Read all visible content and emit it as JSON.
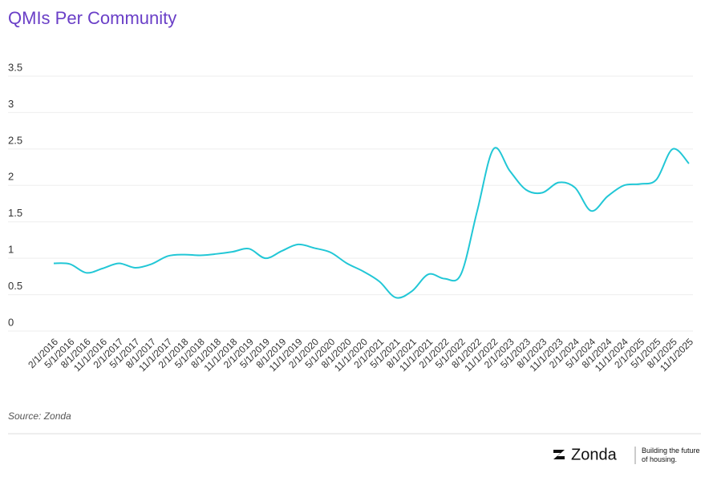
{
  "chart_data": {
    "type": "line",
    "title": "QMIs Per Community",
    "categories": [
      "2/1/2016",
      "5/1/2016",
      "8/1/2016",
      "11/1/2016",
      "2/1/2017",
      "5/1/2017",
      "8/1/2017",
      "11/1/2017",
      "2/1/2018",
      "5/1/2018",
      "8/1/2018",
      "11/1/2018",
      "2/1/2019",
      "5/1/2019",
      "8/1/2019",
      "11/1/2019",
      "2/1/2020",
      "5/1/2020",
      "8/1/2020",
      "11/1/2020",
      "2/1/2021",
      "5/1/2021",
      "8/1/2021",
      "11/1/2021",
      "2/1/2022",
      "5/1/2022",
      "8/1/2022",
      "11/1/2022",
      "2/1/2023",
      "5/1/2023",
      "8/1/2023",
      "11/1/2023",
      "2/1/2024",
      "5/1/2024",
      "8/1/2024",
      "11/1/2024",
      "2/1/2025",
      "5/1/2025",
      "8/1/2025",
      "11/1/2025"
    ],
    "series": [
      {
        "name": "QMIs Per Community",
        "color": "#22c7d6",
        "values": [
          0.93,
          0.92,
          0.8,
          0.86,
          0.93,
          0.87,
          0.92,
          1.03,
          1.05,
          1.04,
          1.06,
          1.09,
          1.13,
          1.0,
          1.1,
          1.19,
          1.14,
          1.08,
          0.93,
          0.82,
          0.68,
          0.46,
          0.55,
          0.78,
          0.72,
          0.78,
          1.65,
          2.5,
          2.2,
          1.94,
          1.9,
          2.04,
          1.97,
          1.65,
          1.85,
          2.0,
          2.02,
          2.08,
          2.5,
          2.3
        ]
      }
    ],
    "ylim": [
      0,
      3.5
    ],
    "yticks": [
      0,
      0.5,
      1,
      1.5,
      2,
      2.5,
      3,
      3.5
    ],
    "grid": true,
    "source": "Source: Zonda",
    "brand": "Zonda",
    "tagline": "Building the future of housing."
  }
}
